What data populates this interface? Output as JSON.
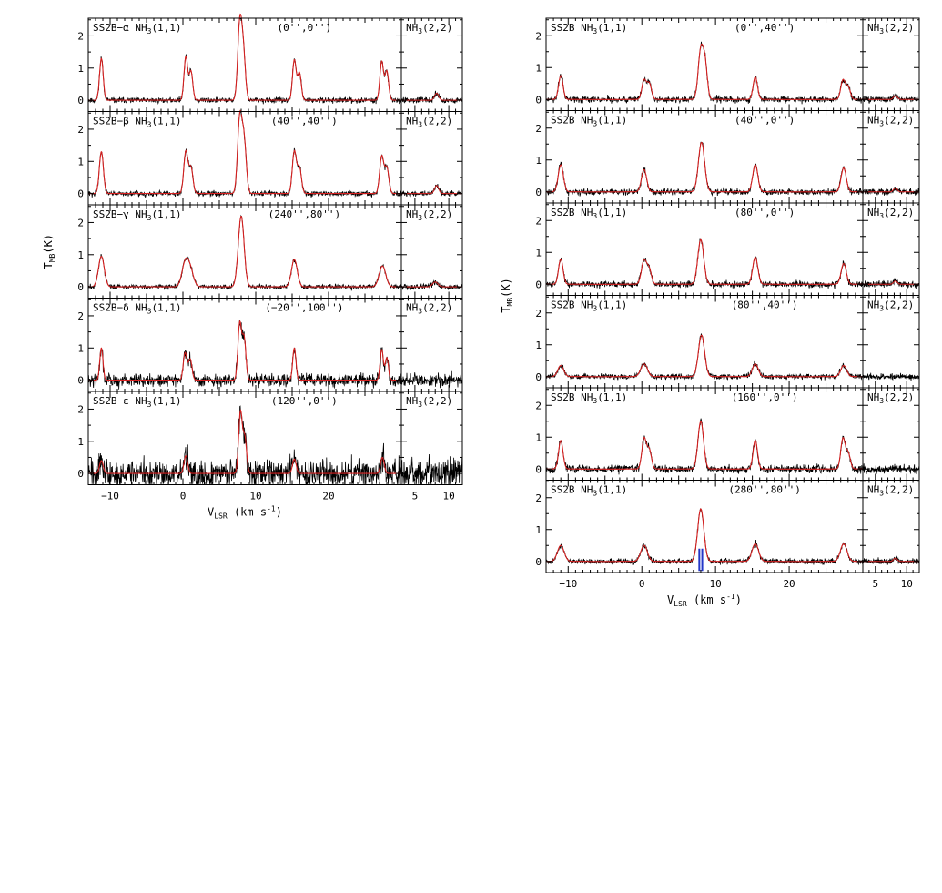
{
  "colors": {
    "observed": "#000000",
    "fit": "#d62020",
    "marker": "#2436c8"
  },
  "chart_data": [
    {
      "type": "line",
      "description_of_layout": "stacked",
      "ylabel": "T",
      "ylabel_sub": "MB",
      "ylabel_suffix": "(K)",
      "xlabel": "V",
      "xlabel_sub": "LSR",
      "xlabel_suffix": " (km s",
      "xlabel_sup": "-1",
      "xlabel_close": ")",
      "main_xlim": [
        -13,
        30
      ],
      "main_xticks": [
        -10,
        0,
        10,
        20
      ],
      "side_xlim": [
        3,
        12
      ],
      "side_xticks": [
        5,
        10
      ],
      "ylim": [
        -0.35,
        2.55
      ],
      "yticks": [
        0,
        1,
        2
      ],
      "side_label_pre": "NH",
      "side_label_sub": "3",
      "side_label_post": "(2,2)",
      "panels": [
        {
          "source": "SS2B−α",
          "line_pre": "NH",
          "line_sub": "3",
          "line_post": "(1,1)",
          "offset": "(0'',0'')",
          "peaks": [
            {
              "v": -11.2,
              "a": 1.3,
              "w": 0.25
            },
            {
              "v": 0.4,
              "a": 1.35,
              "w": 0.25
            },
            {
              "v": 1.1,
              "a": 0.9,
              "w": 0.25
            },
            {
              "v": 7.8,
              "a": 2.3,
              "w": 0.28
            },
            {
              "v": 8.3,
              "a": 1.45,
              "w": 0.28
            },
            {
              "v": 15.3,
              "a": 1.25,
              "w": 0.25
            },
            {
              "v": 16.0,
              "a": 0.85,
              "w": 0.25
            },
            {
              "v": 27.3,
              "a": 1.2,
              "w": 0.25
            },
            {
              "v": 28.0,
              "a": 0.9,
              "w": 0.25
            }
          ],
          "noise": 0.06,
          "side_peaks": [
            {
              "v": 8.2,
              "a": 0.22,
              "w": 0.3
            }
          ]
        },
        {
          "source": "SS2B−β",
          "line_pre": "NH",
          "line_sub": "3",
          "line_post": "(1,1)",
          "offset": "(40'',40'')",
          "peaks": [
            {
              "v": -11.2,
              "a": 1.3,
              "w": 0.28
            },
            {
              "v": 0.4,
              "a": 1.3,
              "w": 0.28
            },
            {
              "v": 1.1,
              "a": 0.8,
              "w": 0.28
            },
            {
              "v": 7.8,
              "a": 2.3,
              "w": 0.3
            },
            {
              "v": 8.4,
              "a": 1.6,
              "w": 0.3
            },
            {
              "v": 15.3,
              "a": 1.3,
              "w": 0.28
            },
            {
              "v": 16.0,
              "a": 0.8,
              "w": 0.28
            },
            {
              "v": 27.3,
              "a": 1.15,
              "w": 0.28
            },
            {
              "v": 28.0,
              "a": 0.8,
              "w": 0.28
            }
          ],
          "noise": 0.06,
          "side_peaks": [
            {
              "v": 8.2,
              "a": 0.25,
              "w": 0.3
            }
          ]
        },
        {
          "source": "SS2B−γ",
          "line_pre": "NH",
          "line_sub": "3",
          "line_post": "(1,1)",
          "offset": "(240'',80'')",
          "peaks": [
            {
              "v": -11.2,
              "a": 0.95,
              "w": 0.4
            },
            {
              "v": 0.3,
              "a": 0.7,
              "w": 0.45
            },
            {
              "v": 1.0,
              "a": 0.5,
              "w": 0.45
            },
            {
              "v": 8.0,
              "a": 2.2,
              "w": 0.4
            },
            {
              "v": 15.3,
              "a": 0.85,
              "w": 0.4
            },
            {
              "v": 27.4,
              "a": 0.65,
              "w": 0.45
            }
          ],
          "noise": 0.05,
          "side_peaks": [
            {
              "v": 8.0,
              "a": 0.15,
              "w": 0.4
            }
          ]
        },
        {
          "source": "SS2B−δ",
          "line_pre": "NH",
          "line_sub": "3",
          "line_post": "(1,1)",
          "offset": "(−20'',100'')",
          "peaks": [
            {
              "v": -11.2,
              "a": 1.0,
              "w": 0.22
            },
            {
              "v": 0.3,
              "a": 0.85,
              "w": 0.25
            },
            {
              "v": 1.0,
              "a": 0.65,
              "w": 0.25
            },
            {
              "v": 7.8,
              "a": 1.75,
              "w": 0.25
            },
            {
              "v": 8.4,
              "a": 1.3,
              "w": 0.25
            },
            {
              "v": 15.3,
              "a": 1.0,
              "w": 0.22
            },
            {
              "v": 27.3,
              "a": 0.95,
              "w": 0.22
            },
            {
              "v": 28.0,
              "a": 0.7,
              "w": 0.22
            }
          ],
          "noise": 0.14,
          "side_peaks": []
        },
        {
          "source": "SS2B−ε",
          "line_pre": "NH",
          "line_sub": "3",
          "line_post": "(1,1)",
          "offset": "(120'',0'')",
          "peaks": [
            {
              "v": -11.2,
              "a": 0.4,
              "w": 0.25
            },
            {
              "v": 0.4,
              "a": 0.55,
              "w": 0.25
            },
            {
              "v": 7.9,
              "a": 1.9,
              "w": 0.25
            },
            {
              "v": 8.5,
              "a": 1.1,
              "w": 0.25
            },
            {
              "v": 15.3,
              "a": 0.45,
              "w": 0.25
            },
            {
              "v": 27.4,
              "a": 0.5,
              "w": 0.25
            }
          ],
          "noise": 0.3,
          "side_peaks": []
        }
      ]
    },
    {
      "type": "line",
      "ylabel": "T",
      "ylabel_sub": "MB",
      "ylabel_suffix": "(K)",
      "xlabel": "V",
      "xlabel_sub": "LSR",
      "xlabel_suffix": " (km s",
      "xlabel_sup": "-1",
      "xlabel_close": ")",
      "main_xlim": [
        -13,
        30
      ],
      "main_xticks": [
        -10,
        0,
        10,
        20
      ],
      "side_xlim": [
        3,
        12
      ],
      "side_xticks": [
        5,
        10
      ],
      "ylim": [
        -0.35,
        2.55
      ],
      "yticks": [
        0,
        1,
        2
      ],
      "side_label_pre": "NH",
      "side_label_sub": "3",
      "side_label_post": "(2,2)",
      "marker_velocities": [
        7.8,
        8.2
      ],
      "panels": [
        {
          "source": "SS2B",
          "line_pre": "NH",
          "line_sub": "3",
          "line_post": "(1,1)",
          "offset": "(0'',40'')",
          "peaks": [
            {
              "v": -11.0,
              "a": 0.75,
              "w": 0.3
            },
            {
              "v": 0.3,
              "a": 0.6,
              "w": 0.3
            },
            {
              "v": 1.0,
              "a": 0.5,
              "w": 0.3
            },
            {
              "v": 8.0,
              "a": 1.55,
              "w": 0.35
            },
            {
              "v": 8.6,
              "a": 1.0,
              "w": 0.3
            },
            {
              "v": 15.4,
              "a": 0.7,
              "w": 0.3
            },
            {
              "v": 27.3,
              "a": 0.6,
              "w": 0.3
            },
            {
              "v": 28.0,
              "a": 0.4,
              "w": 0.3
            }
          ],
          "noise": 0.07,
          "side_peaks": [
            {
              "v": 8.2,
              "a": 0.12,
              "w": 0.3
            }
          ]
        },
        {
          "source": "SS2B",
          "line_pre": "NH",
          "line_sub": "3",
          "line_post": "(1,1)",
          "offset": "(40'',0'')",
          "peaks": [
            {
              "v": -11.0,
              "a": 0.85,
              "w": 0.35
            },
            {
              "v": 0.3,
              "a": 0.7,
              "w": 0.35
            },
            {
              "v": 8.1,
              "a": 1.55,
              "w": 0.42
            },
            {
              "v": 15.4,
              "a": 0.85,
              "w": 0.35
            },
            {
              "v": 27.4,
              "a": 0.75,
              "w": 0.35
            }
          ],
          "noise": 0.07,
          "side_peaks": [
            {
              "v": 8.2,
              "a": 0.12,
              "w": 0.3
            }
          ]
        },
        {
          "source": "SS2B",
          "line_pre": "NH",
          "line_sub": "3",
          "line_post": "(1,1)",
          "offset": "(80'',0'')",
          "peaks": [
            {
              "v": -11.0,
              "a": 0.8,
              "w": 0.3
            },
            {
              "v": 0.3,
              "a": 0.75,
              "w": 0.35
            },
            {
              "v": 1.0,
              "a": 0.45,
              "w": 0.3
            },
            {
              "v": 8.0,
              "a": 1.4,
              "w": 0.4
            },
            {
              "v": 15.4,
              "a": 0.85,
              "w": 0.35
            },
            {
              "v": 27.4,
              "a": 0.65,
              "w": 0.35
            }
          ],
          "noise": 0.07,
          "side_peaks": [
            {
              "v": 8.2,
              "a": 0.1,
              "w": 0.3
            }
          ]
        },
        {
          "source": "SS2B",
          "line_pre": "NH",
          "line_sub": "3",
          "line_post": "(1,1)",
          "offset": "(80'',40'')",
          "peaks": [
            {
              "v": -11.0,
              "a": 0.35,
              "w": 0.4
            },
            {
              "v": 0.3,
              "a": 0.4,
              "w": 0.45
            },
            {
              "v": 8.1,
              "a": 1.3,
              "w": 0.42
            },
            {
              "v": 15.4,
              "a": 0.4,
              "w": 0.4
            },
            {
              "v": 27.4,
              "a": 0.35,
              "w": 0.4
            }
          ],
          "noise": 0.06,
          "side_peaks": []
        },
        {
          "source": "SS2B",
          "line_pre": "NH",
          "line_sub": "3",
          "line_post": "(1,1)",
          "offset": "(160'',0'')",
          "peaks": [
            {
              "v": -11.0,
              "a": 0.9,
              "w": 0.3
            },
            {
              "v": 0.3,
              "a": 0.95,
              "w": 0.3
            },
            {
              "v": 1.0,
              "a": 0.6,
              "w": 0.3
            },
            {
              "v": 8.0,
              "a": 1.5,
              "w": 0.38
            },
            {
              "v": 15.4,
              "a": 0.9,
              "w": 0.3
            },
            {
              "v": 27.3,
              "a": 0.95,
              "w": 0.3
            },
            {
              "v": 28.0,
              "a": 0.5,
              "w": 0.3
            }
          ],
          "noise": 0.09,
          "side_peaks": []
        },
        {
          "source": "SS2B",
          "line_pre": "NH",
          "line_sub": "3",
          "line_post": "(1,1)",
          "offset": "(280'',80'')",
          "peaks": [
            {
              "v": -11.0,
              "a": 0.5,
              "w": 0.45
            },
            {
              "v": 0.3,
              "a": 0.5,
              "w": 0.45
            },
            {
              "v": 8.0,
              "a": 1.65,
              "w": 0.42
            },
            {
              "v": 15.4,
              "a": 0.55,
              "w": 0.45
            },
            {
              "v": 27.4,
              "a": 0.55,
              "w": 0.45
            }
          ],
          "noise": 0.06,
          "side_peaks": [
            {
              "v": 8.2,
              "a": 0.1,
              "w": 0.3
            }
          ]
        }
      ]
    }
  ]
}
